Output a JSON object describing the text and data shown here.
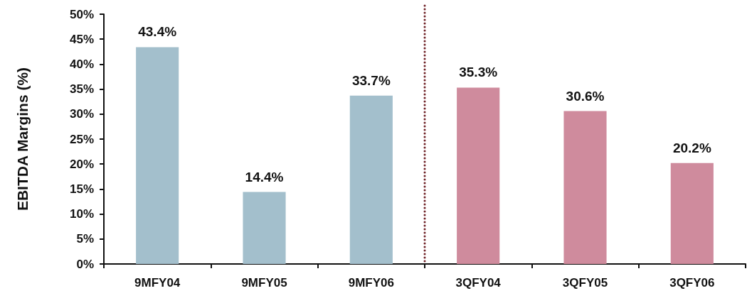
{
  "chart_data": {
    "type": "bar",
    "ylabel": "EBITDA Margins (%)",
    "categories": [
      "9MFY04",
      "9MFY05",
      "9MFY06",
      "3QFY04",
      "3QFY05",
      "3QFY06"
    ],
    "values": [
      43.4,
      14.4,
      33.7,
      35.3,
      30.6,
      20.2
    ],
    "colors": [
      "#a3bfcc",
      "#a3bfcc",
      "#a3bfcc",
      "#cf8b9d",
      "#cf8b9d",
      "#cf8b9d"
    ],
    "value_labels": [
      "43.4%",
      "14.4%",
      "33.7%",
      "35.3%",
      "30.6%",
      "20.2%"
    ],
    "ylim": [
      0,
      50
    ],
    "yticks": [
      {
        "value": 0,
        "label": "0%"
      },
      {
        "value": 5,
        "label": "5%"
      },
      {
        "value": 10,
        "label": "10%"
      },
      {
        "value": 15,
        "label": "15%"
      },
      {
        "value": 20,
        "label": "20%"
      },
      {
        "value": 25,
        "label": "25%"
      },
      {
        "value": 30,
        "label": "30%"
      },
      {
        "value": 35,
        "label": "35%"
      },
      {
        "value": 40,
        "label": "40%"
      },
      {
        "value": 45,
        "label": "45%"
      },
      {
        "value": 50,
        "label": "50%"
      }
    ]
  }
}
